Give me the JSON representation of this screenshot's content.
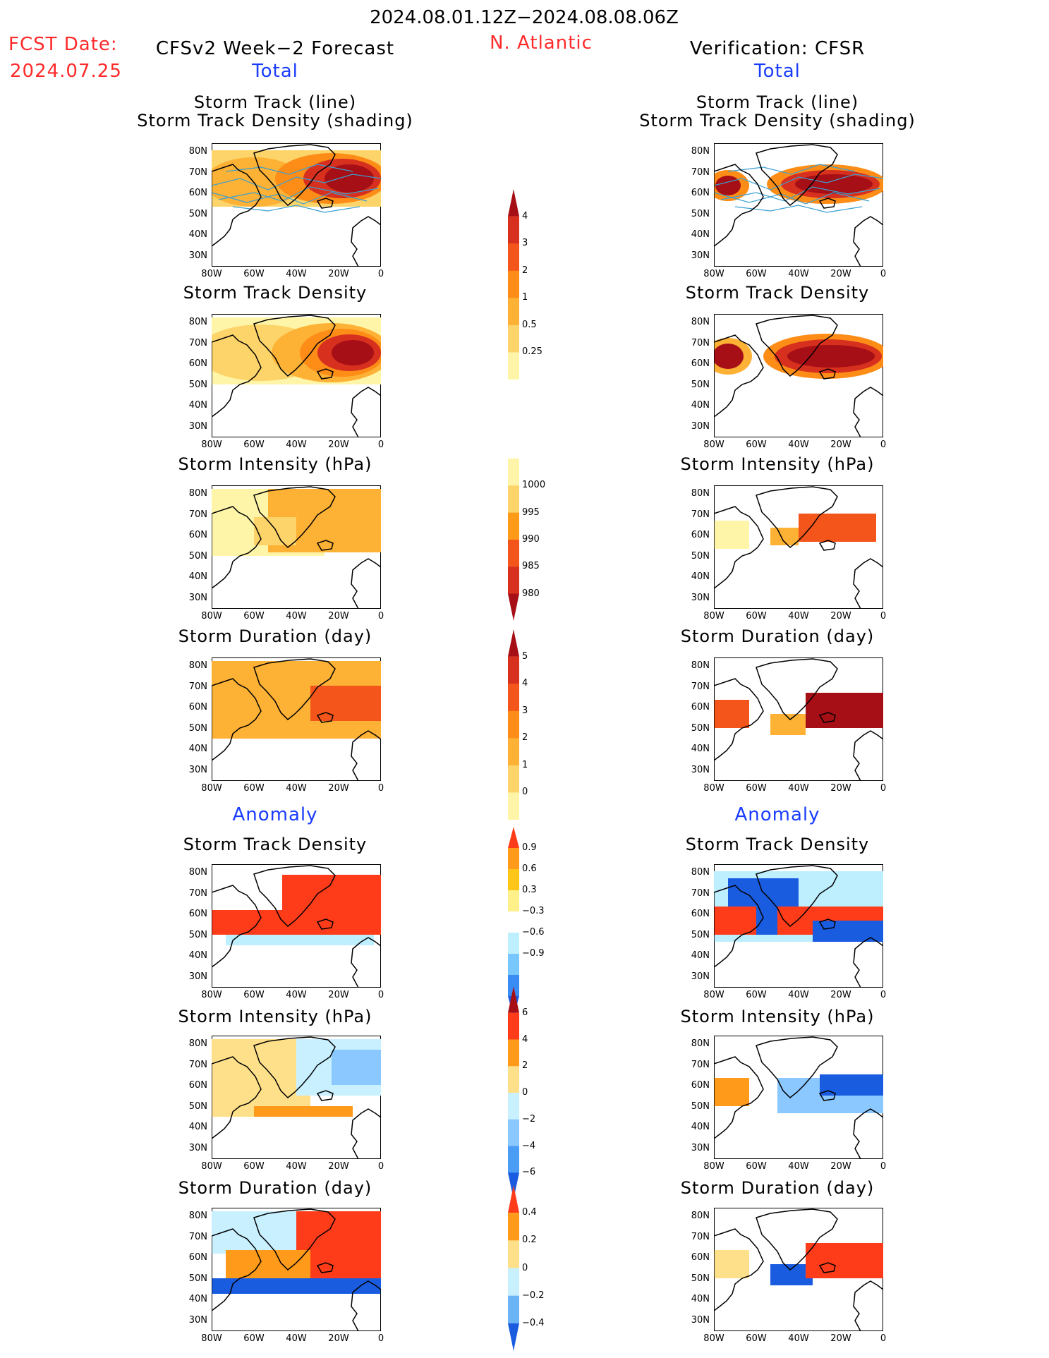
{
  "header": {
    "date_range": "2024.08.01.12Z−2024.08.08.06Z",
    "fcst_label": "FCST Date:",
    "fcst_date": "2024.07.25",
    "left_title": "CFSv2 Week−2 Forecast",
    "region": "N. Atlantic",
    "right_title": "Verification: CFSR"
  },
  "sections": {
    "total": "Total",
    "anomaly": "Anomaly"
  },
  "panel_titles": {
    "track_line": "Storm Track (line)",
    "track_density_shading": "Storm Track Density (shading)",
    "track_density": "Storm Track Density",
    "intensity": "Storm Intensity (hPa)",
    "duration": "Storm Duration (day)"
  },
  "axes": {
    "lat": [
      "80N",
      "70N",
      "60N",
      "50N",
      "40N",
      "30N"
    ],
    "lon": [
      "80W",
      "60W",
      "40W",
      "20W",
      "0"
    ]
  },
  "colorbars": [
    {
      "id": "density_total",
      "labels": [
        "4",
        "3",
        "2",
        "1",
        "0.5",
        "0.25"
      ],
      "colors": [
        "#a50f15",
        "#d7301f",
        "#f4551a",
        "#fd8d17",
        "#fdb135",
        "#fdd46a",
        "#fff5a8"
      ],
      "dir": "up"
    },
    {
      "id": "intensity_total",
      "labels": [
        "1000",
        "995",
        "990",
        "985",
        "980"
      ],
      "colors": [
        "#fff5a8",
        "#fdd46a",
        "#fd9a17",
        "#f4551a",
        "#d7301f",
        "#a50f15"
      ],
      "dir": "down"
    },
    {
      "id": "duration_total",
      "labels": [
        "5",
        "4",
        "3",
        "2",
        "1",
        "0"
      ],
      "colors": [
        "#a50f15",
        "#d7301f",
        "#f4551a",
        "#fd8d17",
        "#fdb135",
        "#fdd46a",
        "#fff5a8"
      ],
      "dir": "up"
    },
    {
      "id": "density_anom",
      "labels": [
        "0.9",
        "0.6",
        "0.3",
        "−0.3",
        "−0.6",
        "−0.9"
      ],
      "colors": [
        "#ff3c1a",
        "#ff9a1a",
        "#ffc61a",
        "#fff08a",
        "#ffffff",
        "#bdefff",
        "#78c8ff",
        "#3a8cf5",
        "#1a5ce0"
      ],
      "dir": "both"
    },
    {
      "id": "intensity_anom",
      "labels": [
        "6",
        "4",
        "2",
        "0",
        "−2",
        "−4",
        "−6"
      ],
      "colors": [
        "#a50f15",
        "#ff3c1a",
        "#ff9a1a",
        "#ffe08a",
        "#c8f0ff",
        "#8ac8ff",
        "#4a9cf5",
        "#1a5ce0"
      ],
      "dir": "both"
    },
    {
      "id": "duration_anom",
      "labels": [
        "0.4",
        "0.2",
        "0",
        "−0.2",
        "−0.4"
      ],
      "colors": [
        "#ff3c1a",
        "#ff9a1a",
        "#ffe08a",
        "#c8f0ff",
        "#6ab4f5",
        "#1a5ce0"
      ],
      "dir": "both"
    }
  ],
  "colors": {
    "header_red": "#ff2a2a",
    "section_blue": "#1a3cff",
    "track_line": "#3aa0d0"
  }
}
